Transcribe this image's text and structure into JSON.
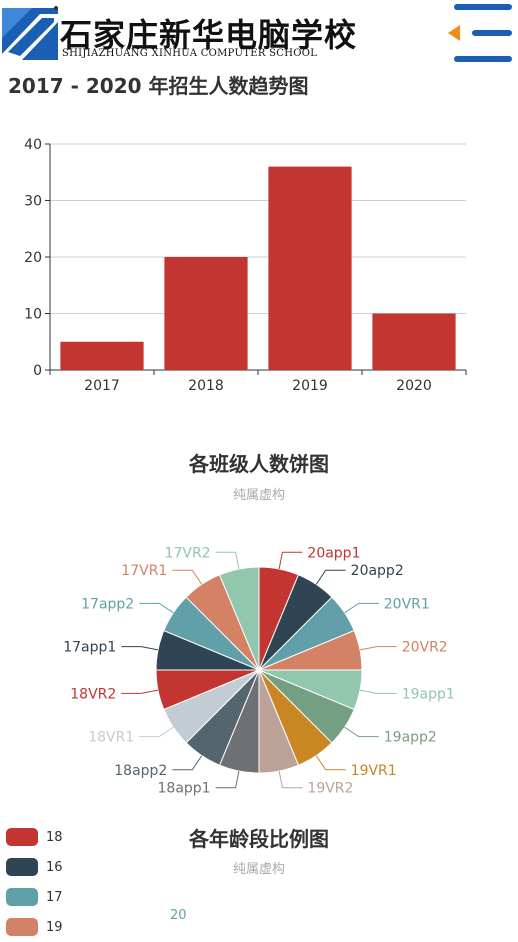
{
  "header": {
    "school_name_cn": "石家庄新华电脑学校",
    "school_name_en": "SHIJIAZHUANG XINHUA COMPUTER SCHOOL",
    "menu_icon": "hamburger-menu-icon",
    "brand_color": "#1a5fb4",
    "accent_color": "#f08a1c"
  },
  "page_title": "2017 - 2020 年招生人数趋势图",
  "pie_section": {
    "title": "各班级人数饼图",
    "subtitle": "纯属虚构"
  },
  "age_section": {
    "title": "各年龄段比例图",
    "subtitle": "纯属虚构",
    "partial_label": "20"
  },
  "chart_data": [
    {
      "type": "bar",
      "categories": [
        "2017",
        "2018",
        "2019",
        "2020"
      ],
      "values": [
        5,
        20,
        36,
        10
      ],
      "ylim": [
        0,
        40
      ],
      "yticks": [
        0,
        10,
        20,
        30,
        40
      ],
      "grid": true,
      "color": "#c23531"
    },
    {
      "type": "pie",
      "title": "各班级人数饼图",
      "subtitle": "纯属虚构",
      "labels": [
        "20app1",
        "20app2",
        "20VR1",
        "20VR2",
        "19app1",
        "19app2",
        "19VR1",
        "19VR2",
        "18app1",
        "18app2",
        "18VR1",
        "18VR2",
        "17app1",
        "17app2",
        "17VR1",
        "17VR2"
      ],
      "values": [
        1,
        1,
        1,
        1,
        1,
        1,
        1,
        1,
        1,
        1,
        1,
        1,
        1,
        1,
        1,
        1
      ],
      "colors": [
        "#c23531",
        "#2f4554",
        "#61a0a8",
        "#d48265",
        "#91c7ae",
        "#749f83",
        "#ca8622",
        "#bda29a",
        "#6e7074",
        "#546570",
        "#c4ccd3",
        "#c23531",
        "#2f4554",
        "#61a0a8",
        "#d48265",
        "#91c7ae"
      ]
    },
    {
      "type": "pie",
      "title": "各年龄段比例图",
      "subtitle": "纯属虚构",
      "legend": [
        "18",
        "16",
        "17",
        "19"
      ],
      "colors": [
        "#c23531",
        "#2f4554",
        "#61a0a8",
        "#d48265"
      ],
      "legend_position": "left"
    }
  ]
}
